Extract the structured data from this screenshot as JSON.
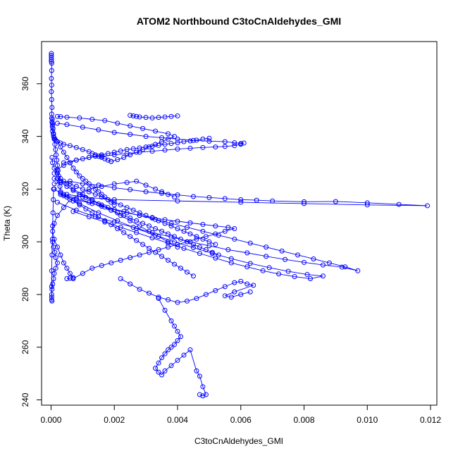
{
  "chart_data": {
    "type": "scatter",
    "title": "ATOM2 Northbound C3toCnAldehydes_GMI",
    "xlabel": "C3toCnAldehydes_GMI",
    "ylabel": "Theta (K)",
    "xlim": [
      -0.0003,
      0.0122
    ],
    "ylim": [
      238,
      376
    ],
    "xticks": [
      0.0,
      0.002,
      0.004,
      0.006,
      0.008,
      0.01,
      0.012
    ],
    "xtick_labels": [
      "0.000",
      "0.002",
      "0.004",
      "0.006",
      "0.008",
      "0.010",
      "0.012"
    ],
    "yticks": [
      240,
      260,
      280,
      300,
      320,
      340,
      360
    ],
    "ytick_labels": [
      "240",
      "260",
      "280",
      "300",
      "320",
      "340",
      "360"
    ],
    "grid": false,
    "legend": "none",
    "color": "#0000ff",
    "marker": "open-circle",
    "connected": true,
    "series": [
      {
        "x": [
          1e-05,
          1e-05,
          1e-05,
          1e-05,
          1e-05,
          2e-05,
          2e-05,
          1e-05,
          2e-05,
          1e-05,
          2e-05,
          3e-05,
          2e-05,
          4e-05,
          3e-05,
          5e-05,
          4e-05,
          6e-05,
          5e-05,
          7e-05,
          8e-05,
          0.0001,
          0.00012,
          0.00015,
          0.0002,
          0.0003,
          0.0004,
          0.0006,
          0.0008,
          0.001,
          0.0012,
          0.0013,
          0.0014,
          0.0015,
          0.0016,
          0.0017,
          0.0018,
          0.0019
        ],
        "y": [
          371.5,
          370.8,
          370.0,
          369.2,
          368.5,
          367.8,
          365.0,
          362.0,
          359.5,
          357.0,
          354.0,
          351.0,
          348.5,
          346.5,
          345.5,
          344.5,
          343.8,
          343.0,
          342.0,
          341.0,
          340.0,
          339.5,
          339.0,
          338.5,
          338.0,
          337.5,
          337.0,
          336.5,
          335.8,
          335.0,
          334.2,
          333.5,
          333.0,
          332.5,
          332.0,
          331.5,
          331.0,
          330.5
        ]
      },
      {
        "x": [
          0.0019,
          0.0021,
          0.0023,
          0.0025,
          0.0027,
          0.0029,
          0.0031,
          0.0033,
          0.0035,
          0.0037,
          0.0039,
          0.0037,
          0.0033,
          0.0029,
          0.0025,
          0.0021,
          0.0017,
          0.0013,
          0.0009,
          0.0005,
          0.0003,
          0.0002
        ],
        "y": [
          330.5,
          331.2,
          332.0,
          333.0,
          334.0,
          335.0,
          336.0,
          337.0,
          338.0,
          339.0,
          340.0,
          341.0,
          342.0,
          343.0,
          344.0,
          345.0,
          346.0,
          346.5,
          347.0,
          347.3,
          347.5,
          347.6
        ]
      },
      {
        "x": [
          0.0002,
          0.0005,
          0.001,
          0.0015,
          0.002,
          0.0025,
          0.003,
          0.0035,
          0.004,
          0.0045,
          0.005,
          0.0055,
          0.0058,
          0.006,
          0.0061,
          0.006,
          0.0058,
          0.0055,
          0.0052,
          0.0048,
          0.0044,
          0.004,
          0.0036,
          0.0032,
          0.0028,
          0.0024,
          0.002,
          0.0016,
          0.0012,
          0.0008,
          0.0004
        ],
        "y": [
          345.0,
          344.5,
          343.5,
          342.5,
          341.5,
          340.8,
          340.0,
          339.5,
          339.0,
          338.5,
          338.2,
          338.0,
          337.6,
          337.3,
          337.5,
          337.0,
          336.5,
          336.2,
          336.0,
          335.8,
          335.5,
          335.2,
          334.8,
          334.4,
          334.0,
          333.5,
          333.0,
          332.5,
          332.0,
          331.0,
          330.0
        ]
      },
      {
        "x": [
          0.0001,
          0.0003,
          0.0006,
          0.001,
          0.0015,
          0.002,
          0.0025,
          0.003,
          0.0035,
          0.004,
          0.0045,
          0.005,
          0.0055,
          0.006,
          0.0065,
          0.007,
          0.008,
          0.009,
          0.01,
          0.011,
          0.0119,
          0.01,
          0.008,
          0.006,
          0.004,
          0.002,
          0.001,
          0.0005
        ],
        "y": [
          322.0,
          322.5,
          323.0,
          322.0,
          321.5,
          320.5,
          319.8,
          319.0,
          318.4,
          317.8,
          317.2,
          316.8,
          316.4,
          316.0,
          315.8,
          315.5,
          315.2,
          315.3,
          314.8,
          314.2,
          313.7,
          314.0,
          314.5,
          315.0,
          315.5,
          316.0,
          317.0,
          318.0
        ]
      },
      {
        "x": [
          0.0002,
          0.0008,
          0.0014,
          0.002,
          0.0026,
          0.0032,
          0.0038,
          0.0044,
          0.005,
          0.0056,
          0.0062,
          0.0068,
          0.0074,
          0.008,
          0.0086,
          0.0092,
          0.0097,
          0.0093,
          0.0088,
          0.0083,
          0.0078,
          0.0073,
          0.0068,
          0.0063,
          0.0058,
          0.0053,
          0.0048,
          0.0043,
          0.0038,
          0.0033,
          0.0028,
          0.0023,
          0.0018,
          0.0013,
          0.0008,
          0.0004
        ],
        "y": [
          315.0,
          312.0,
          309.5,
          307.5,
          305.5,
          303.5,
          301.8,
          300.0,
          298.5,
          297.0,
          295.8,
          294.5,
          293.3,
          292.2,
          291.2,
          290.4,
          289.0,
          290.5,
          292.0,
          293.5,
          295.0,
          296.5,
          298.0,
          299.5,
          301.0,
          302.5,
          304.0,
          305.5,
          307.0,
          308.5,
          310.0,
          311.5,
          313.0,
          314.5,
          316.0,
          317.5
        ]
      },
      {
        "x": [
          0.0003,
          0.0009,
          0.0015,
          0.0021,
          0.0027,
          0.0033,
          0.0039,
          0.0045,
          0.0051,
          0.0057,
          0.0063,
          0.0069,
          0.0075,
          0.0081,
          0.0086,
          0.0082,
          0.0077,
          0.0072,
          0.0067,
          0.0062,
          0.0057,
          0.0052,
          0.0047,
          0.0042,
          0.0037,
          0.0032,
          0.0027,
          0.0022,
          0.0017,
          0.0012,
          0.0007
        ],
        "y": [
          318.0,
          314.5,
          311.0,
          308.0,
          305.0,
          302.5,
          300.0,
          297.8,
          295.6,
          293.6,
          291.8,
          290.2,
          288.8,
          287.6,
          287.0,
          286.0,
          286.8,
          287.8,
          289.0,
          290.5,
          292.0,
          293.8,
          295.6,
          297.5,
          299.5,
          301.5,
          303.5,
          305.5,
          307.5,
          309.5,
          311.5
        ]
      },
      {
        "x": [
          0.0004,
          0.0008,
          0.0012,
          0.0016,
          0.002,
          0.0024,
          0.0028,
          0.0032,
          0.0036,
          0.004,
          0.0044,
          0.0048,
          0.0052,
          0.0056,
          0.0058,
          0.0055,
          0.0052,
          0.0049,
          0.0046,
          0.0043,
          0.004,
          0.0037,
          0.0034,
          0.0031,
          0.0028,
          0.0025,
          0.0022,
          0.0019,
          0.0016,
          0.0013,
          0.001,
          0.0007
        ],
        "y": [
          318.0,
          316.5,
          315.0,
          313.5,
          312.2,
          311.0,
          310.0,
          309.2,
          308.4,
          307.8,
          307.2,
          306.6,
          306.0,
          305.5,
          305.0,
          304.0,
          303.0,
          302.0,
          301.0,
          300.0,
          299.0,
          298.0,
          297.0,
          296.0,
          295.0,
          294.0,
          293.0,
          292.0,
          291.0,
          290.0,
          288.0,
          286.0
        ]
      },
      {
        "x": [
          0.0022,
          0.0025,
          0.0028,
          0.0031,
          0.0034,
          0.0037,
          0.004,
          0.0043,
          0.0046,
          0.0049,
          0.0052,
          0.0055,
          0.0058,
          0.006,
          0.0062,
          0.0064,
          0.0058,
          0.0055,
          0.0057,
          0.006,
          0.0063
        ],
        "y": [
          286.0,
          284.0,
          282.0,
          280.5,
          279.0,
          278.0,
          277.0,
          277.5,
          278.5,
          280.0,
          281.5,
          283.0,
          284.5,
          285.0,
          284.0,
          283.5,
          281.0,
          279.5,
          279.0,
          280.0,
          281.0
        ]
      },
      {
        "x": [
          0.0034,
          0.0036,
          0.0038,
          0.0039,
          0.004,
          0.0041,
          0.004,
          0.0039,
          0.0038,
          0.0037,
          0.0036,
          0.0035,
          0.0034,
          0.0033,
          0.0034,
          0.0035,
          0.0036,
          0.0038,
          0.004,
          0.0042,
          0.0044,
          0.0046,
          0.0047,
          0.0048,
          0.0049,
          0.0048,
          0.0047
        ],
        "y": [
          278.5,
          274.0,
          270.0,
          268.0,
          266.0,
          264.0,
          262.5,
          261.0,
          260.0,
          259.0,
          257.5,
          256.0,
          254.0,
          252.0,
          250.5,
          249.5,
          251.0,
          253.0,
          255.0,
          257.0,
          259.0,
          251.0,
          249.0,
          245.0,
          242.0,
          241.5,
          242.0
        ]
      },
      {
        "x": [
          5e-05,
          8e-05,
          0.00012,
          0.00015,
          0.0002,
          0.00015,
          0.0001,
          8e-05,
          5e-05,
          3e-05,
          2e-05,
          2e-05,
          2e-05,
          3e-05,
          2e-05,
          2e-05,
          3e-05,
          4e-05,
          5e-05,
          6e-05,
          7e-05,
          8e-05
        ],
        "y": [
          300.0,
          298.0,
          296.0,
          294.0,
          292.0,
          290.0,
          288.0,
          286.0,
          284.0,
          282.0,
          280.0,
          279.0,
          278.0,
          277.5,
          283.0,
          289.0,
          295.0,
          301.0,
          306.0,
          311.0,
          316.0,
          320.0
        ]
      },
      {
        "x": [
          0.0005,
          0.0006,
          0.0007,
          0.0006,
          0.0005,
          0.0004,
          0.0003,
          0.0002,
          0.0001,
          5e-05,
          0.0001,
          0.0002,
          0.0004,
          0.0006,
          0.0009,
          0.0012,
          0.0016,
          0.002,
          0.0024,
          0.0027,
          0.003,
          0.0033,
          0.0035,
          0.0037,
          0.0039
        ],
        "y": [
          286.0,
          286.2,
          286.4,
          288.0,
          290.0,
          292.0,
          295.0,
          298.0,
          301.0,
          304.0,
          307.0,
          310.0,
          313.0,
          316.0,
          318.0,
          320.0,
          321.0,
          322.0,
          322.5,
          323.0,
          321.5,
          320.0,
          319.0,
          318.0,
          317.0
        ]
      },
      {
        "x": [
          0.0001,
          0.0002,
          0.0004,
          0.0006,
          0.0008,
          0.001,
          0.0012,
          0.0014,
          0.0016,
          0.0018,
          0.002,
          0.0022,
          0.0024,
          0.0026,
          0.0028,
          0.003,
          0.0032,
          0.0034,
          0.0036,
          0.0038,
          0.004,
          0.0042,
          0.0044,
          0.0046,
          0.0048,
          0.005
        ],
        "y": [
          326.0,
          327.5,
          329.0,
          330.0,
          331.0,
          331.5,
          332.0,
          332.5,
          333.0,
          333.5,
          334.0,
          334.5,
          335.0,
          335.3,
          335.6,
          336.0,
          336.3,
          336.6,
          337.0,
          337.3,
          337.6,
          338.0,
          338.3,
          338.6,
          339.0,
          339.3
        ]
      },
      {
        "x": [
          0.0002,
          0.0004,
          0.0006,
          0.0008,
          0.001,
          0.0012,
          0.0014,
          0.0016,
          0.0018,
          0.002,
          0.0022,
          0.0024,
          0.0026,
          0.0028,
          0.003,
          0.0032,
          0.0034,
          0.0036,
          0.0038,
          0.004,
          0.0042,
          0.0044,
          0.0046,
          0.0048,
          0.005,
          0.0052
        ],
        "y": [
          324.0,
          323.0,
          322.0,
          321.0,
          320.0,
          319.0,
          318.0,
          317.0,
          316.0,
          315.0,
          314.0,
          313.0,
          312.0,
          311.0,
          310.0,
          309.0,
          308.0,
          307.0,
          306.0,
          305.0,
          304.0,
          303.0,
          302.0,
          301.0,
          300.0,
          299.0
        ]
      },
      {
        "x": [
          0.0001,
          0.0003,
          0.0005,
          0.0007,
          0.0009,
          0.0011,
          0.0013,
          0.0015,
          0.0017,
          0.0019,
          0.0021,
          0.0023,
          0.0025,
          0.0027,
          0.0029,
          0.0031,
          0.0033,
          0.0035,
          0.0037,
          0.0039,
          0.0041,
          0.0043,
          0.0045
        ],
        "y": [
          320.0,
          318.5,
          317.0,
          315.5,
          314.0,
          312.5,
          311.0,
          309.5,
          308.0,
          306.5,
          305.0,
          303.5,
          302.0,
          300.5,
          299.0,
          297.5,
          296.0,
          294.5,
          293.0,
          291.5,
          290.0,
          288.5,
          287.0
        ]
      },
      {
        "x": [
          0.0002,
          0.0003,
          0.0004,
          0.0005,
          0.0006,
          0.0007,
          0.0008,
          0.0009,
          0.001,
          0.0011,
          0.0012,
          0.0013,
          0.0014,
          0.0015,
          0.0016,
          0.0017,
          0.0018,
          0.0019,
          0.002
        ],
        "y": [
          338.0,
          336.0,
          334.0,
          332.0,
          330.0,
          328.0,
          326.5,
          325.0,
          324.0,
          323.0,
          322.0,
          321.0,
          320.0,
          319.0,
          318.0,
          317.0,
          316.0,
          315.0,
          314.0
        ]
      },
      {
        "x": [
          3e-05,
          5e-05,
          0.0001,
          0.0002,
          0.0003,
          0.0005,
          0.0007,
          0.001,
          0.0013,
          0.0016,
          0.0019,
          0.0022,
          0.0025,
          0.0028,
          0.0031,
          0.0034,
          0.0037,
          0.004
        ],
        "y": [
          332.0,
          330.0,
          328.0,
          326.0,
          324.0,
          322.0,
          320.0,
          318.0,
          316.0,
          314.0,
          312.0,
          310.0,
          308.0,
          306.0,
          304.0,
          302.0,
          300.0,
          298.0
        ]
      },
      {
        "x": [
          2e-05,
          4e-05,
          6e-05,
          8e-05,
          0.0001,
          0.00012,
          0.00014,
          0.00016,
          0.00018,
          0.0002,
          0.00022,
          0.00024,
          0.00026,
          0.00028,
          0.0003
        ],
        "y": [
          347.0,
          345.0,
          343.0,
          341.0,
          339.0,
          337.0,
          335.0,
          333.0,
          331.0,
          329.0,
          327.0,
          325.0,
          323.0,
          321.0,
          319.0
        ]
      },
      {
        "x": [
          0.0001,
          0.0003,
          0.0005,
          0.0007,
          0.0009,
          0.0011,
          0.0013,
          0.0015,
          0.0017,
          0.0019,
          0.0021,
          0.0023,
          0.0025,
          0.0027,
          0.0029,
          0.0031,
          0.0033,
          0.0035,
          0.0037,
          0.0039,
          0.0041,
          0.0043,
          0.0045,
          0.0047,
          0.0049,
          0.0051,
          0.0053
        ],
        "y": [
          324.0,
          322.5,
          321.0,
          319.5,
          318.0,
          316.8,
          315.6,
          314.4,
          313.2,
          312.0,
          311.0,
          310.0,
          309.0,
          308.0,
          307.0,
          306.0,
          305.0,
          304.0,
          303.0,
          302.0,
          301.0,
          300.0,
          299.0,
          298.0,
          297.0,
          296.0,
          295.0
        ]
      },
      {
        "x": [
          0.0025,
          0.0026,
          0.0027,
          0.0028,
          0.003,
          0.0032,
          0.0034,
          0.0036,
          0.0038,
          0.004
        ],
        "y": [
          348.0,
          347.8,
          347.6,
          347.4,
          347.2,
          347.0,
          347.2,
          347.4,
          347.6,
          347.8
        ]
      }
    ]
  }
}
